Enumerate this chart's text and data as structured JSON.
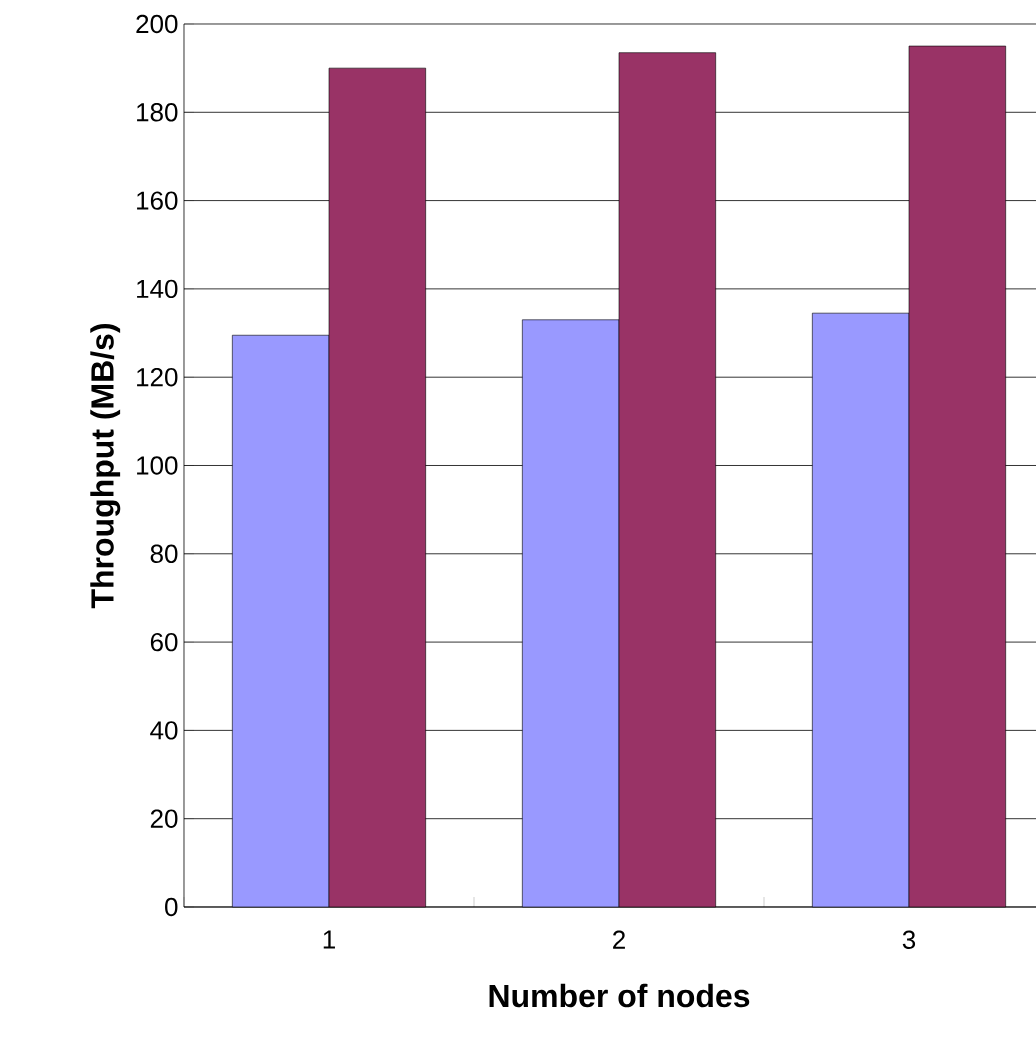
{
  "chart_data": {
    "type": "bar",
    "xlabel": "Number of nodes",
    "ylabel": "Throughput (MB/s)",
    "categories": [
      "1",
      "2",
      "3"
    ],
    "series": [
      {
        "color": "#9999ff",
        "values": [
          129.5,
          133,
          134.5
        ]
      },
      {
        "color": "#993366",
        "values": [
          190,
          193.5,
          195
        ]
      }
    ],
    "ylim": [
      0,
      200
    ],
    "yticks": [
      0,
      20,
      40,
      60,
      80,
      100,
      120,
      140,
      160,
      180,
      200
    ],
    "grid": "y"
  }
}
